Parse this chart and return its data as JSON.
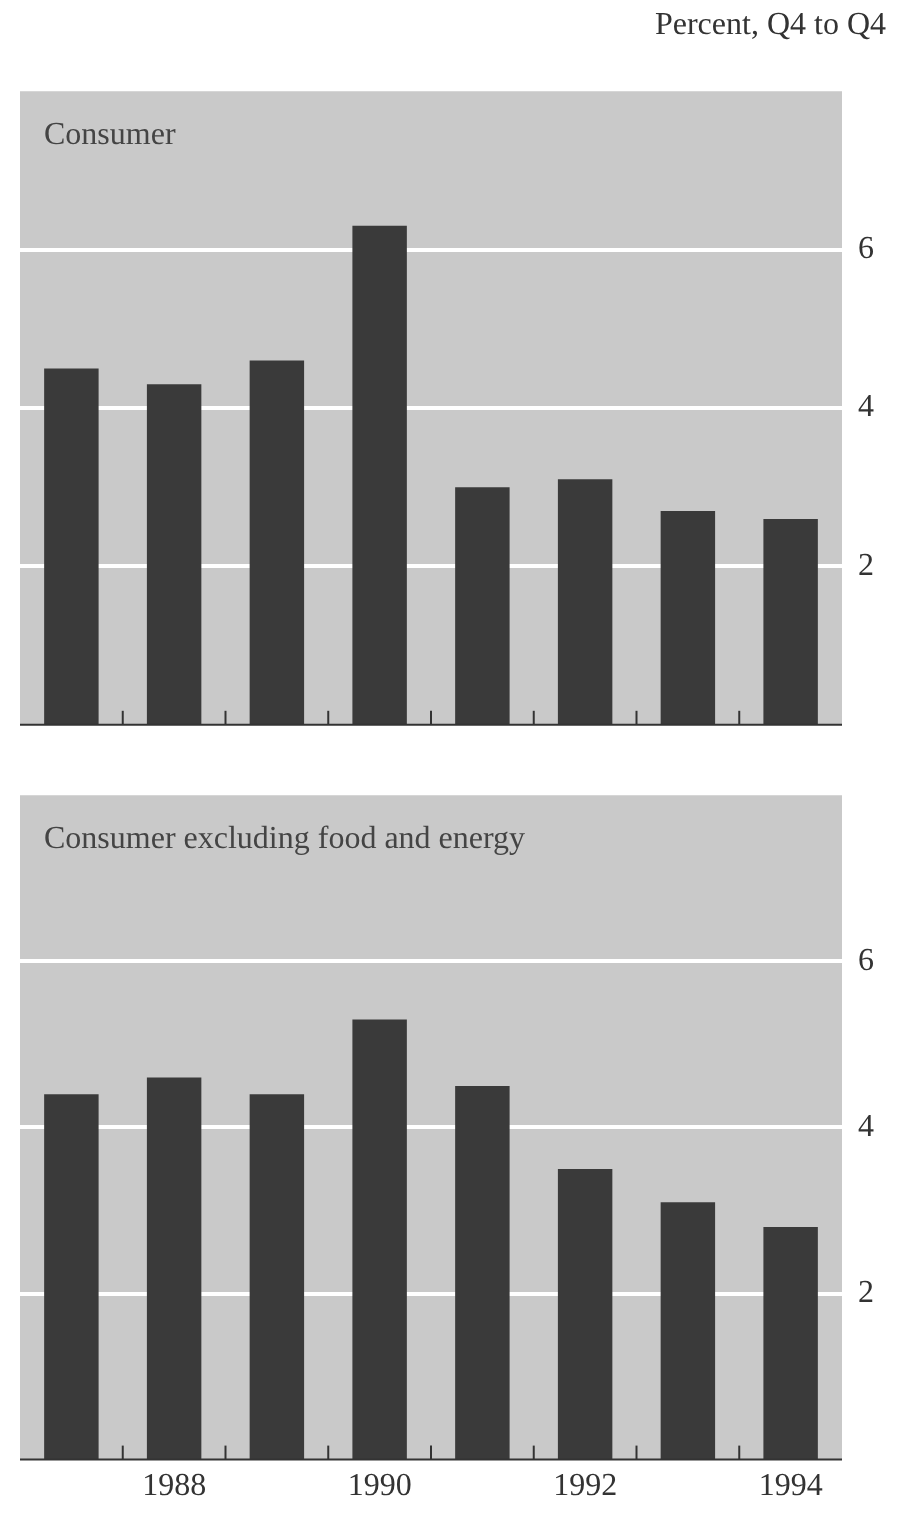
{
  "chart_data": [
    {
      "type": "bar",
      "title": "Consumer",
      "ylabel": "Percent, Q4 to Q4",
      "categories": [
        null,
        "1988",
        null,
        "1990",
        null,
        "1992",
        null,
        "1994"
      ],
      "values": [
        4.5,
        4.3,
        4.6,
        6.3,
        3.0,
        3.1,
        2.7,
        2.6
      ],
      "color": "#3a3a3a",
      "ylim": [
        0,
        8
      ],
      "yticks": [
        2,
        4,
        6
      ],
      "grid": "y",
      "tick_labels": "y"
    },
    {
      "type": "bar",
      "title": "Consumer excluding food and energy",
      "categories": [
        null,
        "1988",
        null,
        "1990",
        null,
        "1992",
        null,
        "1994"
      ],
      "values": [
        4.4,
        4.6,
        4.4,
        5.3,
        4.5,
        3.5,
        3.1,
        2.8
      ],
      "color": "#3a3a3a",
      "ylim": [
        0,
        8
      ],
      "yticks": [
        2,
        4,
        6
      ],
      "grid": "y"
    }
  ]
}
